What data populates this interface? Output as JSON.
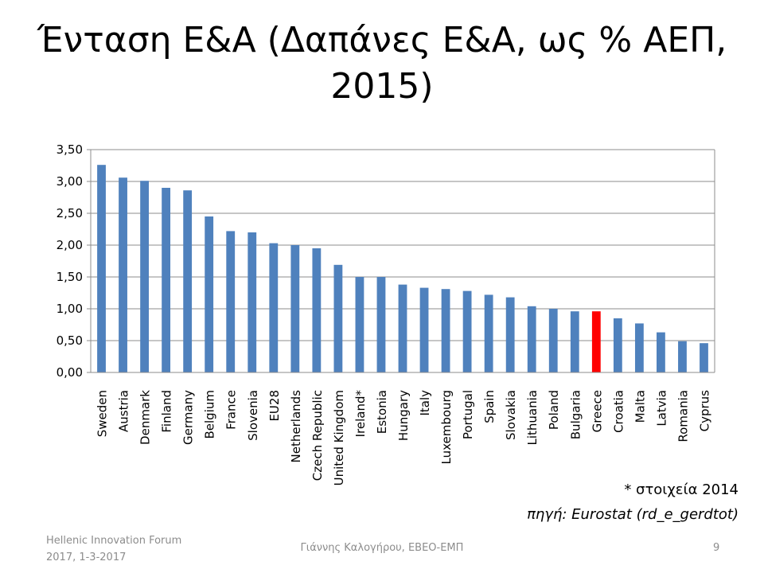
{
  "slide": {
    "title_line1": "Ένταση Ε&Α (Δαπάνες Ε&Α, ως % ΑΕΠ,",
    "title_line2": "2015)",
    "footnote": "* στοιχεία 2014",
    "source": "πηγή: Eurostat (rd_e_gerdtot)",
    "footer_left_line1": "Hellenic Innovation Forum",
    "footer_left_line2": "2017, 1-3-2017",
    "footer_center": "Γιάννης Καλογήρου, ΕΒΕΟ-ΕΜΠ",
    "page_number": "9"
  },
  "chart_data": {
    "type": "bar",
    "categories": [
      "Sweden",
      "Austria",
      "Denmark",
      "Finland",
      "Germany",
      "Belgium",
      "France",
      "Slovenia",
      "EU28",
      "Netherlands",
      "Czech Republic",
      "United Kingdom",
      "Ireland*",
      "Estonia",
      "Hungary",
      "Italy",
      "Luxembourg",
      "Portugal",
      "Spain",
      "Slovakia",
      "Lithuania",
      "Poland",
      "Bulgaria",
      "Greece",
      "Croatia",
      "Malta",
      "Latvia",
      "Romania",
      "Cyprus"
    ],
    "values": [
      3.26,
      3.06,
      3.01,
      2.9,
      2.86,
      2.45,
      2.22,
      2.2,
      2.03,
      2.0,
      1.95,
      1.69,
      1.5,
      1.5,
      1.38,
      1.33,
      1.31,
      1.28,
      1.22,
      1.18,
      1.04,
      1.0,
      0.96,
      0.96,
      0.85,
      0.77,
      0.63,
      0.49,
      0.46
    ],
    "highlight": "Greece",
    "ylim": [
      0,
      3.5
    ],
    "yticks": [
      "0,00",
      "0,50",
      "1,00",
      "1,50",
      "2,00",
      "2,50",
      "3,00",
      "3,50"
    ],
    "grid": true,
    "bar_color": "#4f81bd",
    "highlight_color": "#ff0000"
  }
}
